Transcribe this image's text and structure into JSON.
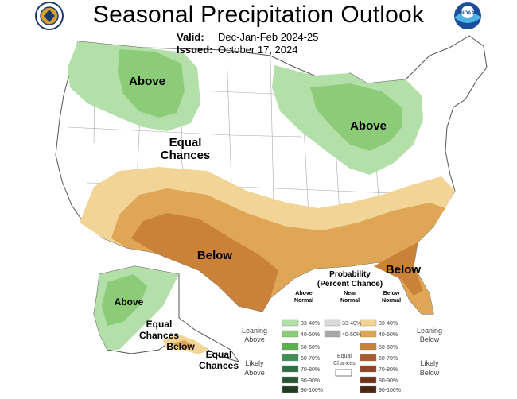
{
  "title": "Seasonal Precipitation Outlook",
  "valid": {
    "label": "Valid:",
    "value": "Dec-Jan-Feb 2024-25"
  },
  "issued": {
    "label": "Issued:",
    "value": "October 17, 2024"
  },
  "logos": {
    "left": "doc-seal",
    "right": "noaa-logo",
    "right_text": "NOAA"
  },
  "map_labels": {
    "nw_above": "Above",
    "gl_above": "Above",
    "equal": [
      "Equal",
      "Chances"
    ],
    "sw_below": "Below",
    "se_below": "Below",
    "ak_above": "Above",
    "ak_equal1": [
      "Equal",
      "Chances"
    ],
    "ak_below": "Below",
    "ak_equal2": [
      "Equal",
      "Chances"
    ]
  },
  "legend": {
    "title": "Probability",
    "subtitle": "(Percent Chance)",
    "col_above": [
      "Above",
      "Normal"
    ],
    "col_near": [
      "Near",
      "Normal"
    ],
    "col_below": [
      "Below",
      "Normal"
    ],
    "leaning_above": [
      "Leaning",
      "Above"
    ],
    "leaning_below": [
      "Leaning",
      "Below"
    ],
    "likely_above": [
      "Likely",
      "Above"
    ],
    "likely_below": [
      "Likely",
      "Below"
    ],
    "equal_chances": [
      "Equal",
      "Chances"
    ],
    "ranges": [
      "33-40%",
      "40-50%",
      "50-60%",
      "60-70%",
      "70-80%",
      "80-90%",
      "90-100%"
    ],
    "near_ranges": [
      "33-40%",
      "40-50%"
    ],
    "above_colors": [
      "#b3dfa8",
      "#8ccc78",
      "#5ab04c",
      "#3f8f55",
      "#2f6f45",
      "#2a5535",
      "#213d22"
    ],
    "near_colors": [
      "#d9d9d9",
      "#a8a8a8"
    ],
    "below_colors": [
      "#f2d496",
      "#dfa655",
      "#c98238",
      "#ad5a2f",
      "#8f4525",
      "#6f3318",
      "#4a2512"
    ]
  }
}
